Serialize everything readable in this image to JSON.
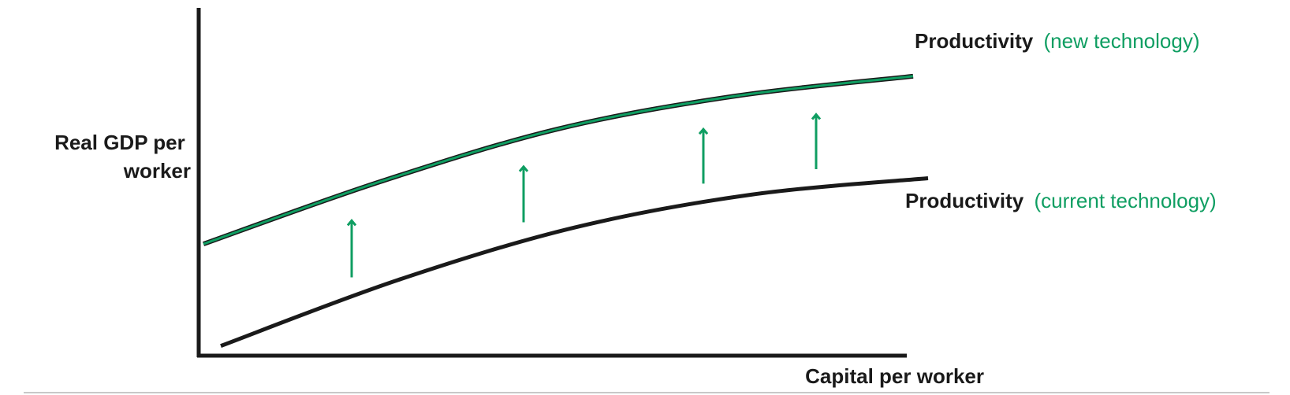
{
  "chart_data": {
    "type": "line",
    "ylabel_lines": [
      "Real GDP per",
      "worker"
    ],
    "xlabel": "Capital per worker",
    "grid": false,
    "axis_ticks": false,
    "series": [
      {
        "label_main": "Productivity",
        "label_note": "(new technology)",
        "color": "#0f9e62",
        "outline_color": "#1a1a1a",
        "points": [
          [
            0.0,
            0.33
          ],
          [
            0.25,
            0.52
          ],
          [
            0.5,
            0.68
          ],
          [
            0.75,
            0.78
          ],
          [
            1.0,
            0.84
          ]
        ]
      },
      {
        "label_main": "Productivity",
        "label_note": "(current technology)",
        "color": "#1a1a1a",
        "points": [
          [
            0.0,
            0.02
          ],
          [
            0.25,
            0.22
          ],
          [
            0.5,
            0.38
          ],
          [
            0.75,
            0.48
          ],
          [
            1.0,
            0.53
          ]
        ]
      }
    ],
    "shift_arrows": {
      "color": "#0f9e62",
      "count": 4
    }
  }
}
